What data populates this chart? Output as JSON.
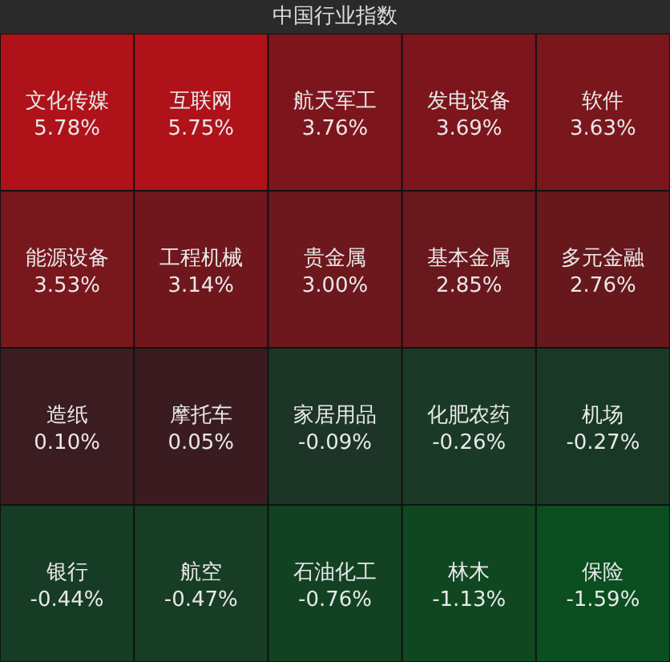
{
  "chart_data": {
    "type": "other",
    "title": "中国行业指数",
    "categories": [
      "文化传媒",
      "互联网",
      "航天军工",
      "发电设备",
      "软件",
      "能源设备",
      "工程机械",
      "贵金属",
      "基本金属",
      "多元金融",
      "造纸",
      "摩托车",
      "家居用品",
      "化肥农药",
      "机场",
      "银行",
      "航空",
      "石油化工",
      "林木",
      "保险"
    ],
    "values": [
      5.78,
      5.75,
      3.76,
      3.69,
      3.63,
      3.53,
      3.14,
      3.0,
      2.85,
      2.76,
      0.1,
      0.05,
      -0.09,
      -0.26,
      -0.27,
      -0.44,
      -0.47,
      -0.76,
      -1.13,
      -1.59
    ],
    "value_labels": [
      "5.78%",
      "5.75%",
      "3.76%",
      "3.69%",
      "3.63%",
      "3.53%",
      "3.14%",
      "3.00%",
      "2.85%",
      "2.76%",
      "0.10%",
      "0.05%",
      "-0.09%",
      "-0.26%",
      "-0.27%",
      "-0.44%",
      "-0.47%",
      "-0.76%",
      "-1.13%",
      "-1.59%"
    ]
  }
}
